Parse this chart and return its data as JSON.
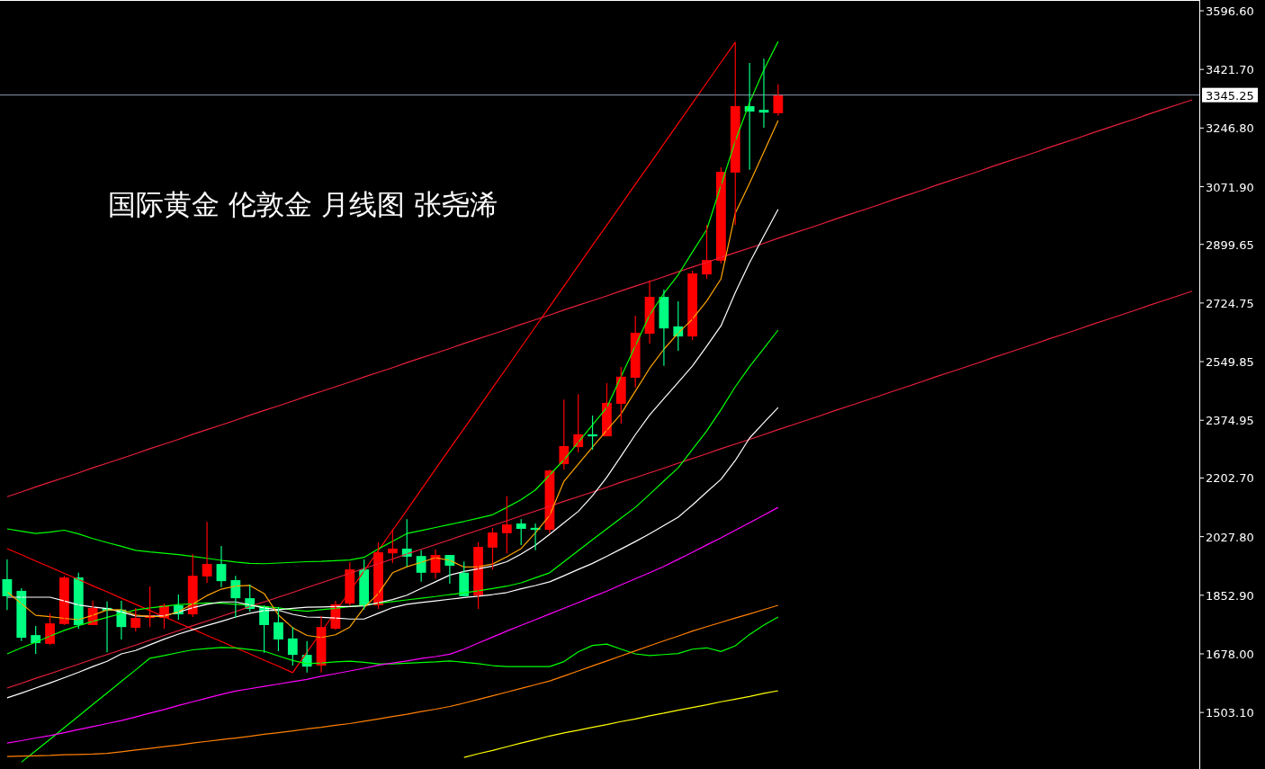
{
  "chart_data": {
    "type": "candlestick",
    "title": "国际黄金 伦敦金 月线图 张尧浠",
    "categories": [
      null,
      null,
      null,
      null,
      null,
      null,
      null,
      null,
      null,
      null,
      null,
      null,
      null,
      null,
      null,
      null,
      null,
      null,
      null,
      null,
      null,
      null,
      null,
      null,
      null,
      null,
      null,
      null,
      null,
      null,
      null,
      null,
      null,
      null,
      null,
      null,
      null,
      null,
      null,
      null,
      null,
      null,
      null,
      null,
      null,
      null,
      null,
      null,
      null,
      null,
      null,
      null,
      null,
      null,
      null,
      null,
      null,
      null,
      null,
      null,
      null,
      null,
      null,
      null,
      null,
      null,
      null,
      null,
      null,
      null,
      null,
      null,
      null,
      null,
      null,
      null,
      null,
      null,
      null,
      null,
      null,
      null,
      null,
      null
    ],
    "ohlc": [
      [
        1901,
        1960,
        1809,
        1850
      ],
      [
        1866,
        1874,
        1716,
        1726
      ],
      [
        1734,
        1761,
        1678,
        1710
      ],
      [
        1708,
        1799,
        1705,
        1769
      ],
      [
        1767,
        1911,
        1764,
        1906
      ],
      [
        1906,
        1920,
        1753,
        1764
      ],
      [
        1764,
        1836,
        1764,
        1815
      ],
      [
        1815,
        1834,
        1683,
        1807
      ],
      [
        1810,
        1836,
        1721,
        1758
      ],
      [
        1756,
        1815,
        1745,
        1785
      ],
      [
        1785,
        1879,
        1758,
        1793
      ],
      [
        1785,
        1828,
        1753,
        1823
      ],
      [
        1823,
        1855,
        1780,
        1796
      ],
      [
        1796,
        1976,
        1788,
        1911
      ],
      [
        1909,
        2072,
        1890,
        1946
      ],
      [
        1946,
        2000,
        1877,
        1895
      ],
      [
        1898,
        1911,
        1785,
        1844
      ],
      [
        1844,
        1885,
        1804,
        1812
      ],
      [
        1820,
        1823,
        1681,
        1764
      ],
      [
        1772,
        1818,
        1686,
        1721
      ],
      [
        1724,
        1758,
        1643,
        1675
      ],
      [
        1675,
        1716,
        1622,
        1640
      ],
      [
        1643,
        1791,
        1622,
        1758
      ],
      [
        1753,
        1836,
        1750,
        1826
      ],
      [
        1828,
        1952,
        1823,
        1930
      ],
      [
        1930,
        1960,
        1810,
        1823
      ],
      [
        1823,
        2011,
        1812,
        1981
      ],
      [
        1978,
        2051,
        1949,
        1992
      ],
      [
        1992,
        2080,
        1938,
        1968
      ],
      [
        1970,
        1987,
        1893,
        1920
      ],
      [
        1920,
        1989,
        1903,
        1973
      ],
      [
        1973,
        1973,
        1887,
        1941
      ],
      [
        1920,
        1954,
        1850,
        1850
      ],
      [
        1852,
        2011,
        1812,
        1997
      ],
      [
        1995,
        2054,
        1930,
        2040
      ],
      [
        2038,
        2148,
        1978,
        2064
      ],
      [
        2067,
        2080,
        2003,
        2051
      ],
      [
        2054,
        2067,
        1987,
        2048
      ],
      [
        2048,
        2228,
        2038,
        2225
      ],
      [
        2244,
        2437,
        2228,
        2298
      ],
      [
        2295,
        2453,
        2279,
        2333
      ],
      [
        2333,
        2389,
        2287,
        2327
      ],
      [
        2327,
        2486,
        2327,
        2427
      ],
      [
        2424,
        2534,
        2365,
        2505
      ],
      [
        2502,
        2687,
        2472,
        2636
      ],
      [
        2633,
        2792,
        2604,
        2743
      ],
      [
        2743,
        2765,
        2537,
        2649
      ],
      [
        2655,
        2730,
        2582,
        2625
      ],
      [
        2625,
        2821,
        2614,
        2813
      ],
      [
        2810,
        2958,
        2797,
        2853
      ],
      [
        2851,
        3130,
        2843,
        3116
      ],
      [
        3114,
        3503,
        2958,
        3312
      ],
      [
        3312,
        3441,
        3122,
        3296
      ],
      [
        3301,
        3454,
        3248,
        3293
      ],
      [
        3291,
        3377,
        3283,
        3345
      ],
      null,
      null,
      null,
      null,
      null,
      null,
      null,
      null,
      null,
      null,
      null,
      null,
      null,
      null,
      null,
      null,
      null,
      null,
      null,
      null,
      null,
      null,
      null,
      null,
      null,
      null,
      null,
      null,
      null
    ],
    "colors": [
      "#00ff80",
      "#00ff80",
      "#00ff80",
      "#ff0000",
      "#ff0000",
      "#00ff80",
      "#ff0000",
      "#00ff80",
      "#00ff80",
      "#ff0000",
      "#ff0000",
      "#ff0000",
      "#00ff80",
      "#ff0000",
      "#ff0000",
      "#00ff80",
      "#00ff80",
      "#00ff80",
      "#00ff80",
      "#00ff80",
      "#00ff80",
      "#00ff80",
      "#ff0000",
      "#ff0000",
      "#ff0000",
      "#00ff80",
      "#ff0000",
      "#ff0000",
      "#00ff80",
      "#00ff80",
      "#ff0000",
      "#00ff80",
      "#00ff80",
      "#ff0000",
      "#ff0000",
      "#ff0000",
      "#00ff80",
      "#00ff80",
      "#ff0000",
      "#ff0000",
      "#ff0000",
      "#00ff80",
      "#ff0000",
      "#ff0000",
      "#ff0000",
      "#ff0000",
      "#00ff80",
      "#00ff80",
      "#ff0000",
      "#ff0000",
      "#ff0000",
      "#ff0000",
      "#00ff80",
      "#00ff80",
      "#ff0000",
      null,
      null,
      null,
      null,
      null,
      null,
      null,
      null,
      null,
      null,
      null,
      null,
      null,
      null,
      null,
      null,
      null,
      null,
      null,
      null,
      null,
      null,
      null,
      null,
      null,
      null,
      null,
      null,
      null
    ],
    "series": [
      {
        "type": "line",
        "color": "#ff0000",
        "values": [
          1992,
          1974,
          1955,
          1937,
          1918,
          1900,
          1881,
          1863,
          1844,
          1826,
          1807,
          1789,
          1770,
          1752,
          1733,
          1715,
          1696,
          1678,
          1659,
          1641,
          1622,
          1683,
          1743,
          1804,
          1865,
          1925,
          1986,
          2047,
          2107,
          2168,
          2229,
          2290,
          2350,
          2411,
          2472,
          2532,
          2593,
          2654,
          2714,
          2775,
          2836,
          2897,
          2957,
          3018,
          3079,
          3139,
          3200,
          3261,
          3321,
          3382,
          3443,
          3503,
          null,
          null,
          null,
          null,
          null,
          null,
          null,
          null,
          null,
          null,
          null,
          null,
          null,
          null,
          null,
          null,
          null,
          null,
          null,
          null,
          null,
          null,
          null,
          null,
          null,
          null,
          null,
          null,
          null,
          null,
          null,
          null
        ]
      },
      {
        "type": "line",
        "color": "#e8203c",
        "values": [
          2147,
          2161,
          2176,
          2190,
          2204,
          2218,
          2233,
          2247,
          2261,
          2275,
          2290,
          2304,
          2318,
          2333,
          2347,
          2361,
          2375,
          2390,
          2404,
          2418,
          2432,
          2447,
          2461,
          2475,
          2489,
          2504,
          2518,
          2532,
          2547,
          2561,
          2575,
          2589,
          2604,
          2618,
          2632,
          2646,
          2661,
          2675,
          2689,
          2704,
          2718,
          2732,
          2746,
          2761,
          2775,
          2789,
          2803,
          2818,
          2832,
          2846,
          2861,
          2875,
          2889,
          2903,
          2918,
          2932,
          2946,
          2960,
          2975,
          2989,
          3003,
          3017,
          3032,
          3046,
          3060,
          3075,
          3089,
          3103,
          3117,
          3132,
          3146,
          3160,
          3174,
          3189,
          3203,
          3217,
          3232,
          3246,
          3260,
          3274,
          3289,
          3303,
          3317,
          3331
        ]
      },
      {
        "type": "line",
        "color": "#e8203c",
        "values": [
          1576,
          1590,
          1605,
          1619,
          1633,
          1647,
          1662,
          1676,
          1690,
          1704,
          1719,
          1733,
          1747,
          1762,
          1776,
          1790,
          1804,
          1819,
          1833,
          1847,
          1861,
          1876,
          1890,
          1904,
          1918,
          1933,
          1947,
          1961,
          1976,
          1990,
          2004,
          2018,
          2033,
          2047,
          2061,
          2075,
          2090,
          2104,
          2118,
          2133,
          2147,
          2161,
          2175,
          2190,
          2204,
          2218,
          2232,
          2247,
          2261,
          2275,
          2290,
          2304,
          2318,
          2332,
          2347,
          2361,
          2375,
          2389,
          2404,
          2418,
          2432,
          2446,
          2461,
          2475,
          2489,
          2504,
          2518,
          2532,
          2546,
          2561,
          2575,
          2589,
          2603,
          2618,
          2632,
          2646,
          2661,
          2675,
          2689,
          2703,
          2718,
          2732,
          2746,
          2760
        ]
      },
      {
        "type": "line",
        "color": "#00ff00",
        "values": [
          2051,
          2044,
          2037,
          2041,
          2047,
          2036,
          2022,
          2010,
          1999,
          1987,
          1982,
          1978,
          1974,
          1969,
          1963,
          1957,
          1952,
          1948,
          1947,
          1949,
          1951,
          1953,
          1954,
          1956,
          1958,
          1966,
          1991,
          2014,
          2037,
          2046,
          2055,
          2064,
          2073,
          2083,
          2093,
          2115,
          2138,
          2167,
          2212,
          2257,
          2309,
          2361,
          2413,
          2505,
          2597,
          2689,
          2754,
          2809,
          2877,
          2944,
          3076,
          3208,
          3323,
          3420,
          3505,
          null,
          null,
          null,
          null,
          null,
          null,
          null,
          null,
          null,
          null,
          null,
          null,
          null,
          null,
          null,
          null,
          null,
          null,
          null,
          null,
          null,
          null,
          null,
          null,
          null,
          null,
          null,
          null,
          null
        ]
      },
      {
        "type": "line",
        "color": "#00ff00",
        "values": [
          1678,
          1696,
          1713,
          1731,
          1748,
          1762,
          1775,
          1787,
          1798,
          1809,
          1815,
          1820,
          1825,
          1827,
          1830,
          1829,
          1826,
          1823,
          1819,
          1815,
          1809,
          1805,
          1810,
          1814,
          1819,
          1823,
          1829,
          1834,
          1839,
          1844,
          1849,
          1855,
          1860,
          1866,
          1873,
          1880,
          1890,
          1905,
          1920,
          1953,
          1986,
          2019,
          2051,
          2083,
          2115,
          2154,
          2194,
          2233,
          2288,
          2343,
          2407,
          2475,
          2535,
          2589,
          2644,
          null,
          null,
          null,
          null,
          null,
          null,
          null,
          null,
          null,
          null,
          null,
          null,
          null,
          null,
          null,
          null,
          null,
          null,
          null,
          null,
          null,
          null,
          null,
          null,
          null,
          null,
          null,
          null,
          null
        ]
      },
      {
        "type": "line",
        "color": "#00ff00",
        "values": [
          null,
          1355,
          1389,
          1423,
          1458,
          1492,
          1527,
          1561,
          1596,
          1630,
          1665,
          1673,
          1682,
          1690,
          1694,
          1697,
          1696,
          1691,
          1686,
          1672,
          1658,
          1649,
          1651,
          1654,
          1656,
          1653,
          1648,
          1648,
          1650,
          1652,
          1654,
          1657,
          1653,
          1649,
          1643,
          1640,
          1640,
          1640,
          1640,
          1655,
          1684,
          1703,
          1707,
          1692,
          1678,
          1673,
          1676,
          1679,
          1692,
          1696,
          1685,
          1702,
          1736,
          1764,
          1788,
          null,
          null,
          null,
          null,
          null,
          null,
          null,
          null,
          null,
          null,
          null,
          null,
          null,
          null,
          null,
          null,
          null,
          null,
          null,
          null,
          null,
          null,
          null,
          null,
          null,
          null,
          null,
          null,
          null
        ]
      },
      {
        "type": "line",
        "color": "#ffffff",
        "values": [
          1847,
          1847,
          1847,
          1847,
          1836,
          1824,
          1818,
          1813,
          1803,
          1791,
          1790,
          1792,
          1802,
          1816,
          1826,
          1833,
          1833,
          1824,
          1815,
          1810,
          1814,
          1817,
          1818,
          1819,
          1819,
          1821,
          1831,
          1840,
          1853,
          1873,
          1893,
          1913,
          1924,
          1932,
          1940,
          1953,
          1976,
          2002,
          2035,
          2069,
          2103,
          2150,
          2205,
          2268,
          2332,
          2391,
          2440,
          2488,
          2537,
          2596,
          2657,
          2756,
          2845,
          2925,
          3004,
          null,
          null,
          null,
          null,
          null,
          null,
          null,
          null,
          null,
          null,
          null,
          null,
          null,
          null,
          null,
          null,
          null,
          null,
          null,
          null,
          null,
          null,
          null,
          null,
          null,
          null,
          null,
          null,
          null
        ]
      },
      {
        "type": "line",
        "color": "#ffffff",
        "values": [
          1547,
          1561,
          1576,
          1591,
          1607,
          1623,
          1640,
          1656,
          1678,
          1688,
          1705,
          1722,
          1737,
          1750,
          1763,
          1775,
          1788,
          1799,
          1807,
          1808,
          1796,
          1788,
          1787,
          1785,
          1782,
          1782,
          1799,
          1816,
          1826,
          1831,
          1836,
          1841,
          1846,
          1850,
          1855,
          1861,
          1872,
          1882,
          1893,
          1911,
          1930,
          1948,
          1969,
          1991,
          2013,
          2036,
          2061,
          2086,
          2122,
          2161,
          2199,
          2255,
          2322,
          2368,
          2413,
          null,
          null,
          null,
          null,
          null,
          null,
          null,
          null,
          null,
          null,
          null,
          null,
          null,
          null,
          null,
          null,
          null,
          null,
          null,
          null,
          null,
          null,
          null,
          null,
          null,
          null,
          null,
          null,
          null
        ]
      },
      {
        "type": "line",
        "color": "#ffa500",
        "values": [
          1863,
          1828,
          1793,
          1789,
          1784,
          1780,
          1793,
          1809,
          1810,
          1794,
          1789,
          1790,
          1804,
          1827,
          1852,
          1871,
          1880,
          1882,
          1858,
          1794,
          1756,
          1733,
          1727,
          1735,
          1758,
          1816,
          1858,
          1920,
          1938,
          1951,
          1965,
          1957,
          1937,
          1938,
          1946,
          1968,
          1992,
          2039,
          2091,
          2193,
          2244,
          2295,
          2345,
          2394,
          2462,
          2530,
          2587,
          2635,
          2677,
          2731,
          2797,
          2993,
          3082,
          3175,
          3269,
          null,
          null,
          null,
          null,
          null,
          null,
          null,
          null,
          null,
          null,
          null,
          null,
          null,
          null,
          null,
          null,
          null,
          null,
          null,
          null,
          null,
          null,
          null,
          null,
          null,
          null,
          null,
          null,
          null
        ]
      },
      {
        "type": "line",
        "color": "#ff00ff",
        "values": [
          1412,
          1419,
          1427,
          1434,
          1443,
          1452,
          1461,
          1470,
          1479,
          1490,
          1501,
          1512,
          1524,
          1535,
          1546,
          1557,
          1567,
          1574,
          1581,
          1588,
          1595,
          1602,
          1611,
          1619,
          1627,
          1635,
          1644,
          1651,
          1657,
          1664,
          1670,
          1677,
          1692,
          1710,
          1728,
          1746,
          1763,
          1780,
          1797,
          1814,
          1831,
          1848,
          1865,
          1884,
          1902,
          1920,
          1939,
          1960,
          1981,
          2003,
          2024,
          2047,
          2069,
          2092,
          2115,
          null,
          null,
          null,
          null,
          null,
          null,
          null,
          null,
          null,
          null,
          null,
          null,
          null,
          null,
          null,
          null,
          null,
          null,
          null,
          null,
          null,
          null,
          null,
          null,
          null,
          null,
          null,
          null,
          null
        ]
      },
      {
        "type": "line",
        "color": "#ff8000",
        "values": [
          1372,
          1373,
          1374,
          1375,
          1377,
          1378,
          1379,
          1381,
          1386,
          1391,
          1396,
          1401,
          1406,
          1412,
          1417,
          1422,
          1427,
          1432,
          1438,
          1443,
          1448,
          1454,
          1459,
          1465,
          1470,
          1477,
          1484,
          1491,
          1498,
          1506,
          1513,
          1521,
          1531,
          1542,
          1553,
          1564,
          1575,
          1586,
          1597,
          1612,
          1627,
          1642,
          1657,
          1672,
          1687,
          1702,
          1717,
          1731,
          1746,
          1759,
          1772,
          1785,
          1797,
          1810,
          1823,
          null,
          null,
          null,
          null,
          null,
          null,
          null,
          null,
          null,
          null,
          null,
          null,
          null,
          null,
          null,
          null,
          null,
          null,
          null,
          null,
          null,
          null,
          null,
          null,
          null,
          null,
          null,
          null,
          null
        ]
      },
      {
        "type": "line",
        "color": "#ffff00",
        "values": [
          null,
          null,
          null,
          null,
          null,
          null,
          null,
          null,
          null,
          null,
          null,
          null,
          null,
          null,
          null,
          null,
          null,
          null,
          null,
          null,
          null,
          null,
          null,
          null,
          null,
          null,
          null,
          null,
          null,
          null,
          null,
          null,
          1369,
          1380,
          1390,
          1401,
          1412,
          1422,
          1433,
          1442,
          1450,
          1459,
          1467,
          1476,
          1484,
          1493,
          1501,
          1510,
          1518,
          1526,
          1535,
          1543,
          1551,
          1560,
          1568,
          null,
          null,
          null,
          null,
          null,
          null,
          null,
          null,
          null,
          null,
          null,
          null,
          null,
          null,
          null,
          null,
          null,
          null,
          null,
          null,
          null,
          null,
          null,
          null,
          null,
          null,
          null,
          null,
          null
        ]
      }
    ],
    "ylim": [
      1334.5,
      3628.8
    ],
    "yticks": [
      {
        "value": 3596.6,
        "label": "3596.60"
      },
      {
        "value": 3421.7,
        "label": "3421.70"
      },
      {
        "value": 3246.8,
        "label": "3246.80"
      },
      {
        "value": 3071.9,
        "label": "3071.90"
      },
      {
        "value": 2899.65,
        "label": "2899.65"
      },
      {
        "value": 2724.75,
        "label": "2724.75"
      },
      {
        "value": 2549.85,
        "label": "2549.85"
      },
      {
        "value": 2374.95,
        "label": "2374.95"
      },
      {
        "value": 2202.7,
        "label": "2202.70"
      },
      {
        "value": 2027.8,
        "label": "2027.80"
      },
      {
        "value": 1852.9,
        "label": "1852.90"
      },
      {
        "value": 1678,
        "label": "1678.00"
      },
      {
        "value": 1503.1,
        "label": "1503.10"
      }
    ],
    "ref_lines": [
      {
        "axis": "y",
        "value": 3345.25,
        "label": "3345.25",
        "color": "#8c9cb0"
      }
    ],
    "tick_labels": "y"
  }
}
